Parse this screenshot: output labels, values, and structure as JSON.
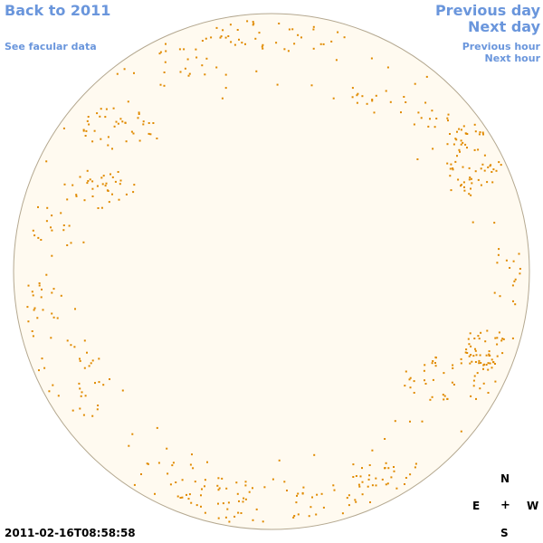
{
  "nav": {
    "back_year": "Back to 2011",
    "facular": "See facular data",
    "previous_day": "Previous day",
    "next_day": "Next day",
    "previous_hour": "Previous hour",
    "next_hour": "Next hour"
  },
  "compass": {
    "north": "N",
    "east": "E",
    "center": "+",
    "west": "W",
    "south": "S"
  },
  "timestamp": "2011-02-16T08:58:58",
  "colors": {
    "link": "#6a96dc",
    "disk_fill": "#fffaf0",
    "disk_edge": "#b4a890",
    "feature": "#e08a00"
  }
}
